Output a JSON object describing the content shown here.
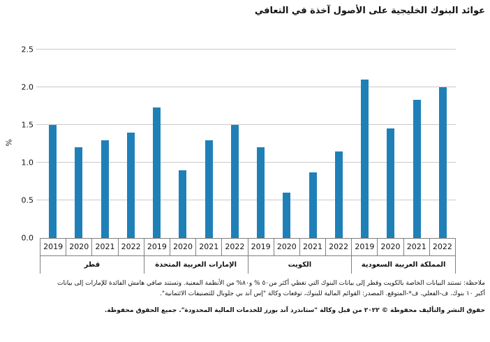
{
  "title": "عوائد البنوك الخليجية على الأصول آخذة في التعافي",
  "chart_data": {
    "type": "bar",
    "title": "عوائد البنوك الخليجية على الأصول آخذة في التعافي",
    "xlabel": "",
    "ylabel": "%",
    "ylim": [
      0,
      2.5
    ],
    "yticks": [
      "0.0",
      "0.5",
      "1.0",
      "1.5",
      "2.0",
      "2.5"
    ],
    "grid": "horizontal",
    "bar_color": "#1F80B8",
    "years": [
      "2019",
      "2020",
      "2021",
      "2022"
    ],
    "groups": [
      {
        "label": "قطر",
        "values": [
          1.5,
          1.2,
          1.3,
          1.4
        ]
      },
      {
        "label": "الإمارات العربية المتحدة",
        "values": [
          1.73,
          0.9,
          1.3,
          1.5
        ]
      },
      {
        "label": "الكويت",
        "values": [
          1.2,
          0.6,
          0.87,
          1.15
        ]
      },
      {
        "label": "المملكة العربية السعودية",
        "values": [
          2.1,
          1.45,
          1.83,
          2.0
        ]
      }
    ]
  },
  "footnotes": {
    "line1": "ملاحظة: تستند البيانات الخاصة بالكويت وقطر إلى بيانات البنوك التي تغطي أكثر من٥٠ % و٨٠% من الأنظمة المعنية. وتستند صافي هامش الفائدة للإمارات إلى بيانات",
    "line2": "أكبر ١٠ بنوك. ف-الفعلي. ف*-المتوقع. المصدر: القوائم المالية للبنوك، توقعات وكالة \"إس آند بي جلوبال للتصنيفات الائتمانية\".",
    "copyright": "حقوق النشر والتأليف محفوظة © ٢٠٢٢ من قبل وكالة \"ستاندرد آند بورز للخدمات المالية المحدودة\". جميع الحقوق محفوظة."
  }
}
